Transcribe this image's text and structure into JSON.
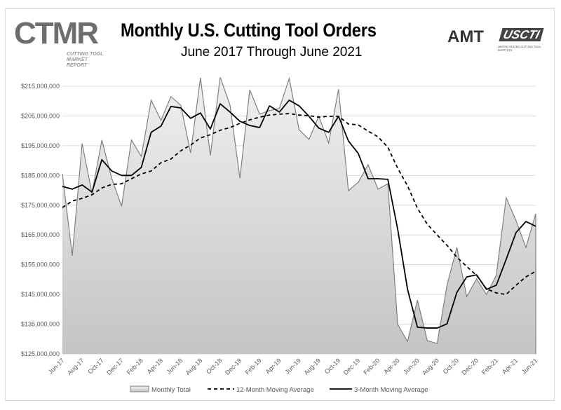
{
  "header": {
    "title": "Monthly U.S. Cutting Tool Orders",
    "subtitle": "June 2017 Through June 2021",
    "logos": {
      "ctmr": "CTMR",
      "ctmr_sub": "CUTTING TOOL MARKET REPORT",
      "amt": "AMT",
      "uscti": "USCTI",
      "uscti_sub": "UNITED STATES CUTTING TOOL INSTITUTE"
    }
  },
  "colors": {
    "monthly_fill_top": "#f0f0f0",
    "monthly_fill_bottom": "#c4c4c4",
    "monthly_line": "#808080",
    "ma": "#000000",
    "grid": "#d9d9d9"
  },
  "chart_data": {
    "type": "area",
    "title": "Monthly U.S. Cutting Tool Orders",
    "subtitle": "June 2017 Through June 2021",
    "xlabel": "",
    "ylabel": "",
    "ylim": [
      125000000,
      215000000
    ],
    "yticks": [
      215000000,
      205000000,
      195000000,
      185000000,
      175000000,
      165000000,
      155000000,
      145000000,
      135000000,
      125000000
    ],
    "ytick_labels": [
      "$215,000,000",
      "$205,000,000",
      "$195,000,000",
      "$185,000,000",
      "$175,000,000",
      "$165,000,000",
      "$155,000,000",
      "$145,000,000",
      "$135,000,000",
      "$125,000,000"
    ],
    "grid": true,
    "legend_position": "bottom",
    "x": [
      "Jun-17",
      "Jul-17",
      "Aug-17",
      "Sep-17",
      "Oct-17",
      "Nov-17",
      "Dec-17",
      "Jan-18",
      "Feb-18",
      "Mar-18",
      "Apr-18",
      "May-18",
      "Jun-18",
      "Jul-18",
      "Aug-18",
      "Sep-18",
      "Oct-18",
      "Nov-18",
      "Dec-18",
      "Jan-19",
      "Feb-19",
      "Mar-19",
      "Apr-19",
      "May-19",
      "Jun-19",
      "Jul-19",
      "Aug-19",
      "Sep-19",
      "Oct-19",
      "Nov-19",
      "Dec-19",
      "Jan-20",
      "Feb-20",
      "Mar-20",
      "Apr-20",
      "May-20",
      "Jun-20",
      "Jul-20",
      "Aug-20",
      "Sep-20",
      "Oct-20",
      "Nov-20",
      "Dec-20",
      "Jan-21",
      "Feb-21",
      "Mar-21",
      "Apr-21",
      "May-21",
      "Jun-21"
    ],
    "xtick_labels": [
      "Jun-17",
      "Aug-17",
      "Oct-17",
      "Dec-17",
      "Feb-18",
      "Apr-18",
      "Jun-18",
      "Aug-18",
      "Oct-18",
      "Dec-18",
      "Feb-19",
      "Apr-19",
      "Jun-19",
      "Aug-19",
      "Oct-19",
      "Dec-19",
      "Feb-20",
      "Apr-20",
      "Jun-20",
      "Aug-20",
      "Oct-20",
      "Dec-20",
      "Feb-21",
      "Apr-21",
      "Jun-21"
    ],
    "series": [
      {
        "name": "Monthly Total",
        "style": "area",
        "unit": "USD millions",
        "values": [
          185.5,
          158,
          195.7,
          179,
          196.9,
          184,
          174.7,
          196.9,
          191.4,
          210.3,
          203.5,
          211.5,
          208.6,
          192.6,
          217.8,
          191.7,
          218,
          208.6,
          184.1,
          213.8,
          205.6,
          206.8,
          207.5,
          217.6,
          200.4,
          197.1,
          204.9,
          195.9,
          214,
          179.9,
          182.7,
          188.6,
          180.4,
          182.2,
          134.9,
          129.2,
          143.1,
          129.5,
          128.5,
          148.1,
          160.8,
          144.3,
          150.2,
          145,
          151.4,
          177.5,
          169.8,
          160.8,
          172.1
        ]
      },
      {
        "name": "12-Month Moving Average",
        "style": "dashed",
        "unit": "USD millions",
        "values": [
          174.2,
          176.4,
          177.3,
          178.5,
          180.8,
          182,
          182.2,
          183.9,
          185.5,
          186.5,
          189.3,
          190.5,
          193.3,
          195.2,
          197.6,
          198.7,
          200.2,
          201.1,
          202.5,
          203.7,
          204.6,
          205.3,
          205.6,
          205.8,
          205.3,
          205.1,
          204.6,
          204.9,
          204.9,
          202.3,
          202,
          199.9,
          198,
          194.5,
          187.4,
          181.5,
          174,
          168.6,
          165,
          161.5,
          157.5,
          154.4,
          151.4,
          146.9,
          145.5,
          145,
          148.1,
          150.9,
          152.8
        ]
      },
      {
        "name": "3-Month Moving Average",
        "style": "solid",
        "unit": "USD millions",
        "values": [
          181.3,
          180.4,
          181.8,
          179.4,
          190.3,
          186.5,
          185,
          185,
          187.7,
          199.5,
          201.6,
          208.2,
          207.7,
          204.2,
          206,
          200.6,
          209.1,
          206.3,
          203.2,
          201.8,
          201.1,
          208.4,
          206.3,
          210.3,
          208.4,
          204.9,
          200.9,
          199.5,
          204.9,
          196.6,
          192.4,
          183.9,
          183.9,
          183.7,
          166.9,
          146.7,
          134,
          133.7,
          133.7,
          135.1,
          145.7,
          150.9,
          151.6,
          146.7,
          148.1,
          156.8,
          165.8,
          169.5,
          167.9
        ]
      }
    ]
  }
}
